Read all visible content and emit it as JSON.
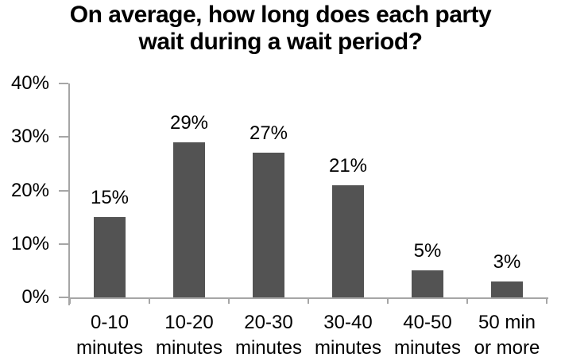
{
  "chart_data": {
    "type": "bar",
    "title": "On average, how long does each party\nwait during a wait period?",
    "categories": [
      "0-10\nminutes",
      "10-20\nminutes",
      "20-30\nminutes",
      "30-40\nminutes",
      "40-50\nminutes",
      "50 min\nor more"
    ],
    "values": [
      15,
      29,
      27,
      21,
      5,
      3
    ],
    "value_labels": [
      "15%",
      "29%",
      "27%",
      "21%",
      "5%",
      "3%"
    ],
    "xlabel": "",
    "ylabel": "",
    "y_tick_labels": [
      "0%",
      "10%",
      "20%",
      "30%",
      "40%"
    ],
    "ylim": [
      0,
      40
    ],
    "grid": false,
    "legend_position": "none",
    "colors": {
      "bar": "#535353",
      "axis": "#a6a6a6",
      "text": "#000000",
      "background": "#ffffff"
    }
  }
}
